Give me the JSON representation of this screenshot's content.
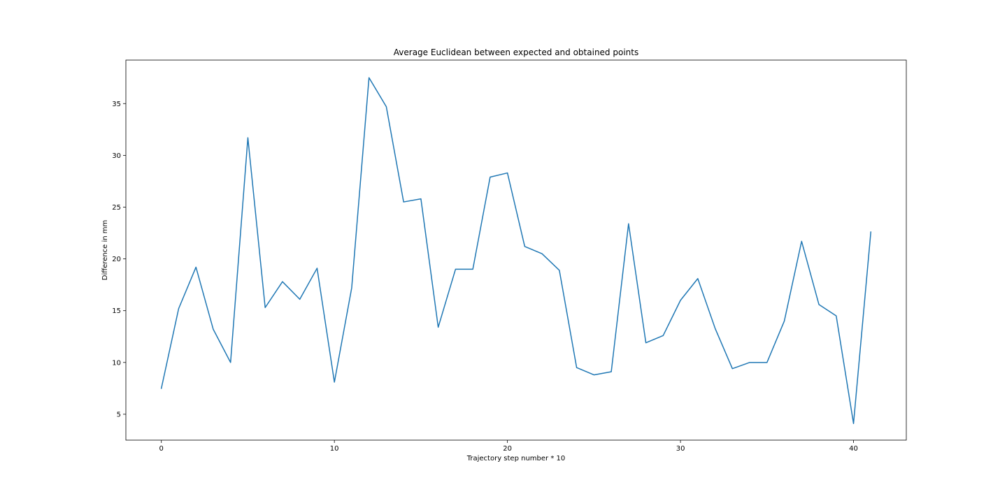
{
  "chart_data": {
    "type": "line",
    "title": "Average Euclidean between expected and obtained points",
    "xlabel": "Trajectory step number * 10",
    "ylabel": "Difference in mm",
    "xlim": [
      -2.05,
      43.05
    ],
    "ylim": [
      2.5,
      39.2
    ],
    "xticks": [
      0,
      10,
      20,
      30,
      40
    ],
    "yticks": [
      5,
      10,
      15,
      20,
      25,
      30,
      35
    ],
    "grid": false,
    "series": [
      {
        "color": "#1f77b4",
        "x": [
          0,
          1,
          2,
          3,
          4,
          5,
          6,
          7,
          8,
          9,
          10,
          11,
          12,
          13,
          14,
          15,
          16,
          17,
          18,
          19,
          20,
          21,
          22,
          23,
          24,
          25,
          26,
          27,
          28,
          29,
          30,
          31,
          32,
          33,
          34,
          35,
          36,
          37,
          38,
          39,
          40,
          41
        ],
        "values": [
          7.5,
          15.2,
          19.2,
          13.2,
          10.0,
          31.7,
          15.3,
          17.8,
          16.1,
          19.1,
          8.1,
          17.2,
          37.5,
          34.7,
          25.5,
          25.8,
          13.4,
          19.0,
          19.0,
          27.9,
          28.3,
          21.2,
          20.5,
          18.9,
          9.5,
          8.8,
          9.1,
          23.4,
          11.9,
          12.6,
          16.0,
          18.1,
          13.3,
          9.4,
          10.0,
          10.0,
          14.0,
          21.7,
          15.6,
          14.5,
          4.1,
          22.6
        ]
      }
    ]
  }
}
